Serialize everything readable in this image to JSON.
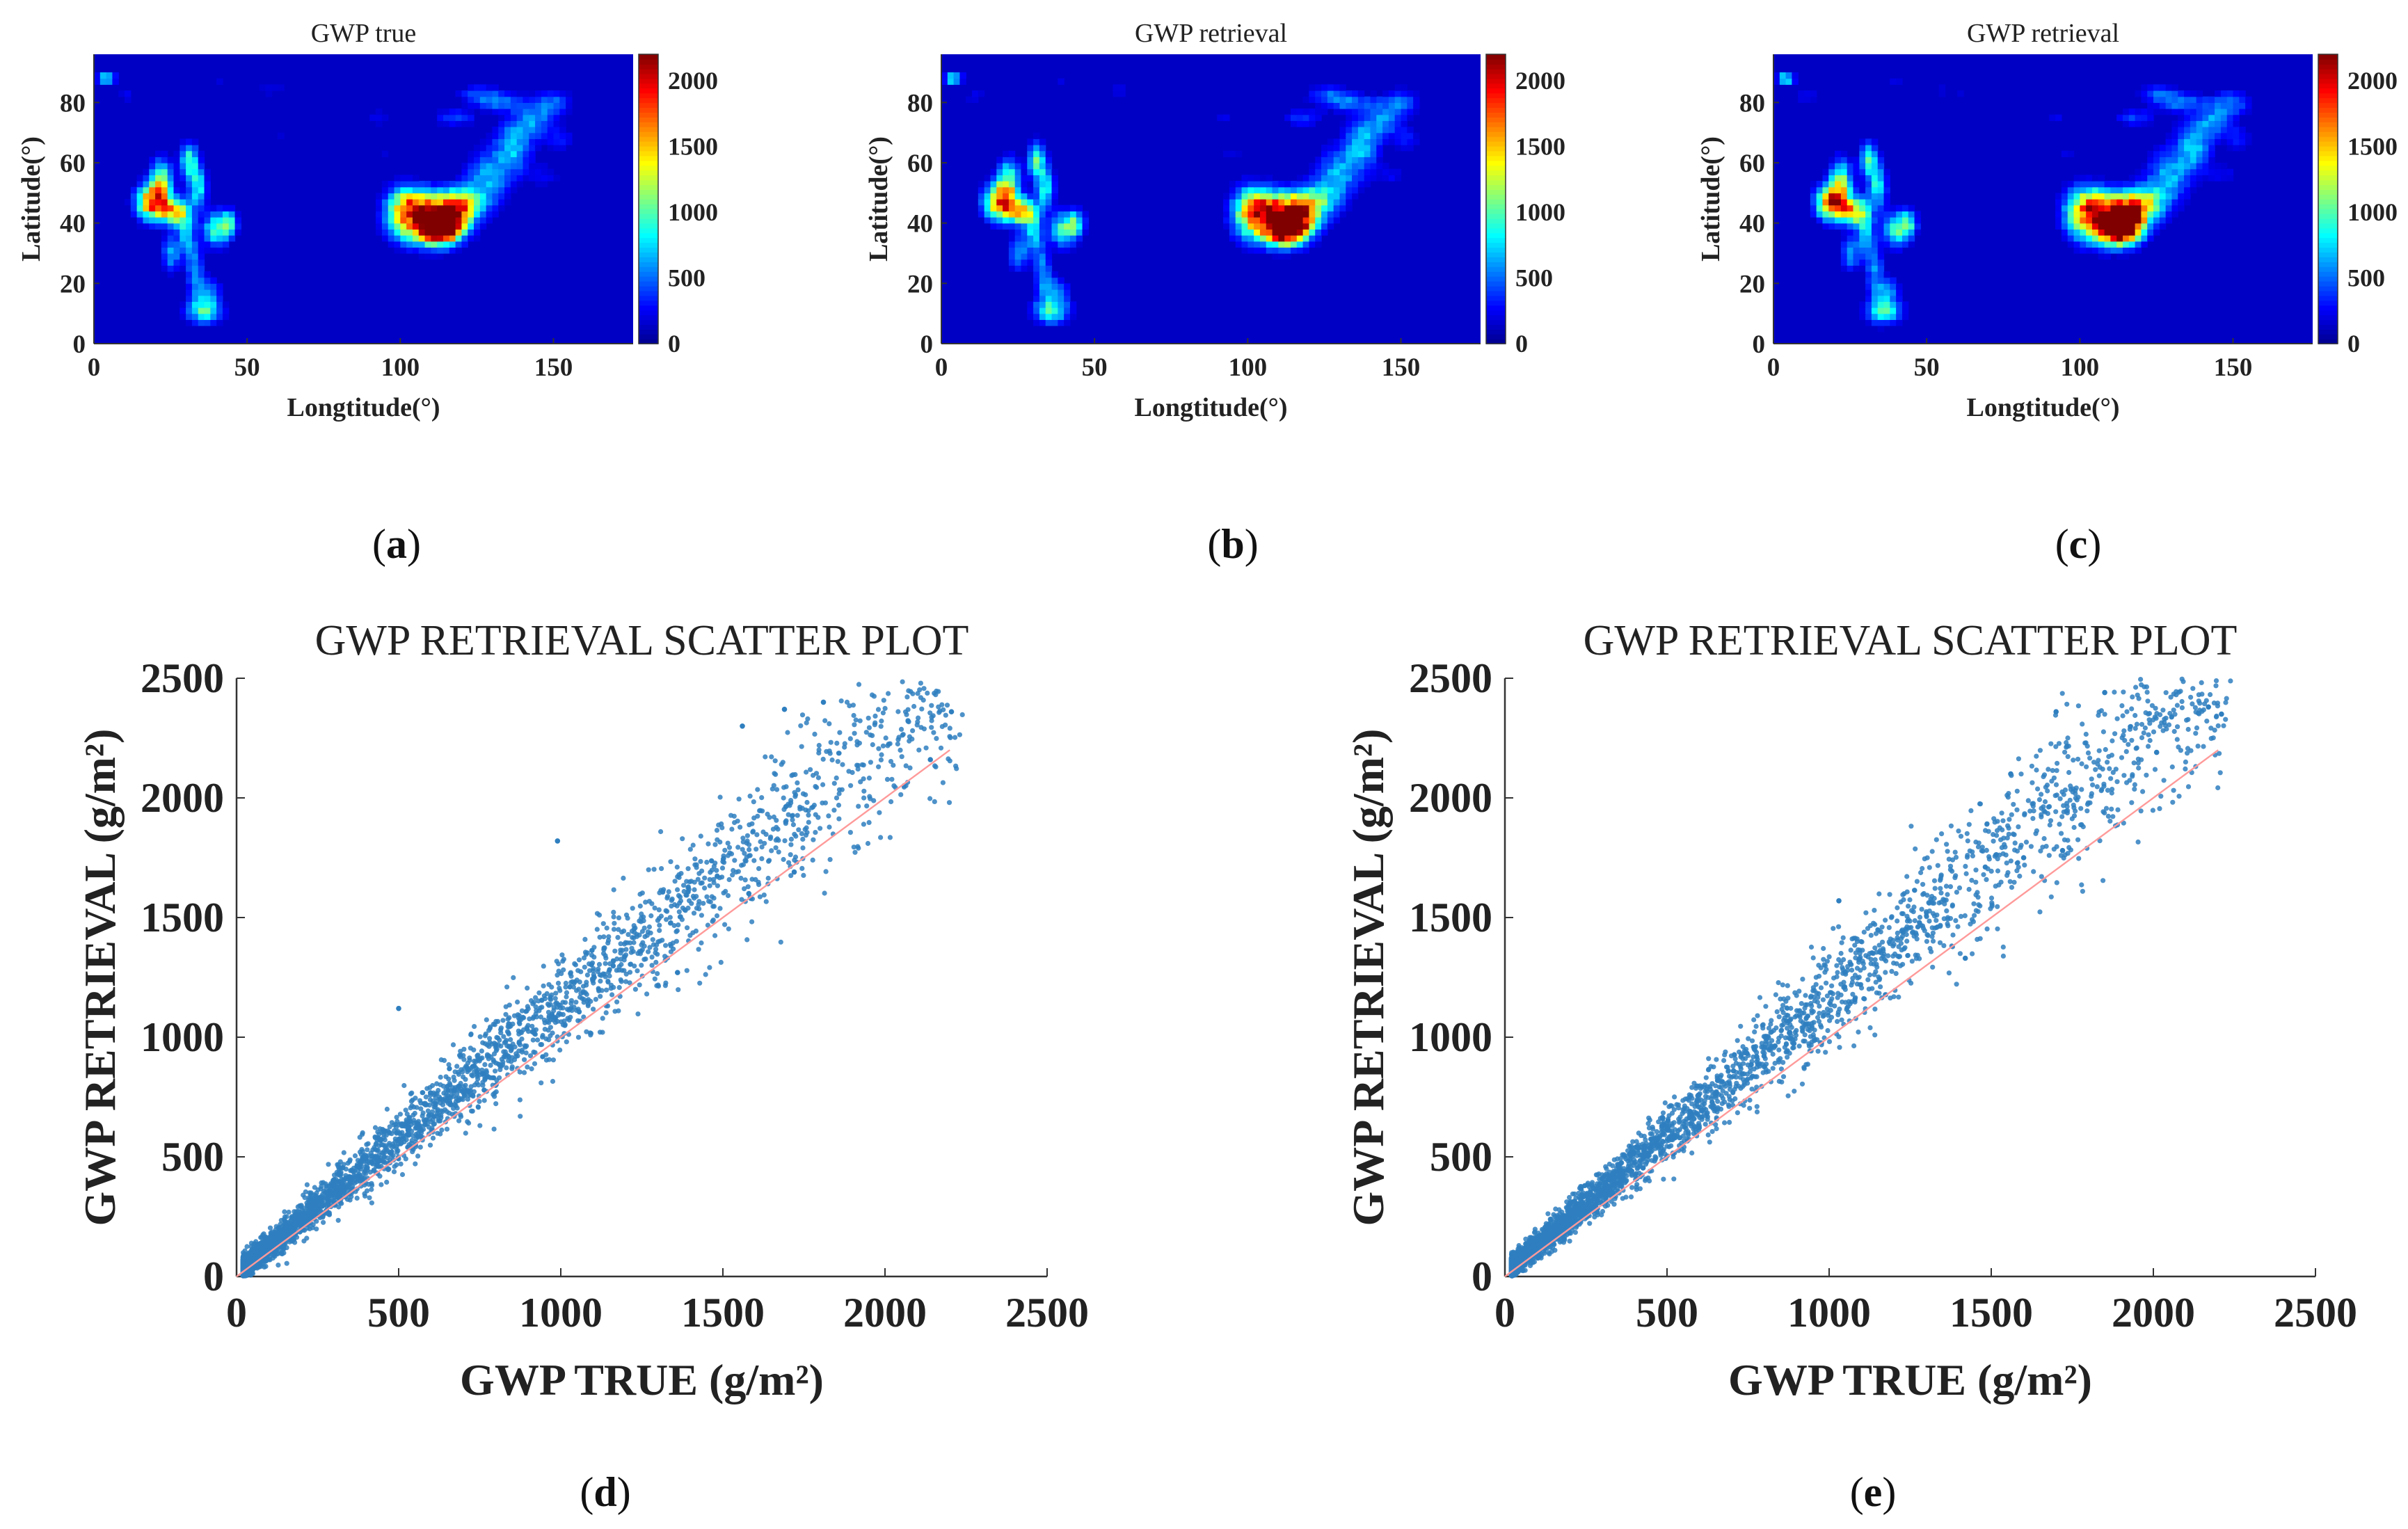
{
  "figure": {
    "panels_labels": {
      "a": "a",
      "b": "b",
      "c": "c",
      "d": "d",
      "e": "e"
    },
    "colormap": [
      "#00008f",
      "#0000ff",
      "#0080ff",
      "#00ffff",
      "#80ff80",
      "#ffff00",
      "#ff8000",
      "#ff0000",
      "#800000"
    ]
  },
  "chart_data": [
    {
      "id": "a",
      "type": "heatmap",
      "title": "GWP true",
      "xlabel": "Longtitude(°)",
      "ylabel": "Latitude(°)",
      "xlim": [
        0,
        176
      ],
      "ylim": [
        0,
        96
      ],
      "xticks": [
        0,
        50,
        100,
        150
      ],
      "yticks": [
        0,
        20,
        40,
        60,
        80
      ],
      "colorbar": {
        "min": 0,
        "max": 2200,
        "ticks": [
          0,
          500,
          1000,
          1500,
          2000
        ]
      }
    },
    {
      "id": "b",
      "type": "heatmap",
      "title": "GWP retrieval",
      "xlabel": "Longtitude(°)",
      "ylabel": "Latitude(°)",
      "xlim": [
        0,
        176
      ],
      "ylim": [
        0,
        96
      ],
      "xticks": [
        0,
        50,
        100,
        150
      ],
      "yticks": [
        0,
        20,
        40,
        60,
        80
      ],
      "colorbar": {
        "min": 0,
        "max": 2200,
        "ticks": [
          0,
          500,
          1000,
          1500,
          2000
        ]
      }
    },
    {
      "id": "c",
      "type": "heatmap",
      "title": "GWP retrieval",
      "xlabel": "Longtitude(°)",
      "ylabel": "Latitude(°)",
      "xlim": [
        0,
        176
      ],
      "ylim": [
        0,
        96
      ],
      "xticks": [
        0,
        50,
        100,
        150
      ],
      "yticks": [
        0,
        20,
        40,
        60,
        80
      ],
      "colorbar": {
        "min": 0,
        "max": 2200,
        "ticks": [
          0,
          500,
          1000,
          1500,
          2000
        ]
      }
    },
    {
      "id": "d",
      "type": "scatter",
      "title": "GWP RETRIEVAL SCATTER PLOT",
      "xlabel": "GWP TRUE (g/m²)",
      "ylabel": "GWP RETRIEVAL (g/m²)",
      "xlim": [
        0,
        2500
      ],
      "ylim": [
        0,
        2500
      ],
      "xticks": [
        0,
        500,
        1000,
        1500,
        2000,
        2500
      ],
      "yticks": [
        0,
        500,
        1000,
        1500,
        2000,
        2500
      ],
      "reference_line": {
        "x": [
          0,
          2200
        ],
        "y": [
          0,
          2200
        ]
      },
      "trend": {
        "slope": 1.12,
        "n_points": 4000
      },
      "sample_points": [
        [
          1560,
          2300
        ],
        [
          1690,
          2370
        ],
        [
          1810,
          2400
        ],
        [
          2205,
          2360
        ],
        [
          2140,
          2160
        ],
        [
          1720,
          1690
        ],
        [
          1580,
          1600
        ],
        [
          1360,
          1270
        ],
        [
          500,
          1120
        ],
        [
          990,
          1820
        ]
      ]
    },
    {
      "id": "e",
      "type": "scatter",
      "title": "GWP RETRIEVAL SCATTER PLOT",
      "xlabel": "GWP TRUE (g/m²)",
      "ylabel": "GWP RETRIEVAL (g/m²)",
      "xlim": [
        0,
        2500
      ],
      "ylim": [
        0,
        2500
      ],
      "xticks": [
        0,
        500,
        1000,
        1500,
        2000,
        2500
      ],
      "yticks": [
        0,
        500,
        1000,
        1500,
        2000,
        2500
      ],
      "reference_line": {
        "x": [
          0,
          2200
        ],
        "y": [
          0,
          2200
        ]
      },
      "trend": {
        "slope": 1.15,
        "n_points": 4000
      },
      "sample_points": [
        [
          1700,
          2360
        ],
        [
          1850,
          2440
        ],
        [
          2170,
          2380
        ],
        [
          2210,
          2350
        ],
        [
          2010,
          2190
        ],
        [
          1720,
          1780
        ],
        [
          1600,
          1750
        ],
        [
          1420,
          1330
        ],
        [
          1030,
          1570
        ],
        [
          1560,
          2100
        ]
      ]
    }
  ]
}
